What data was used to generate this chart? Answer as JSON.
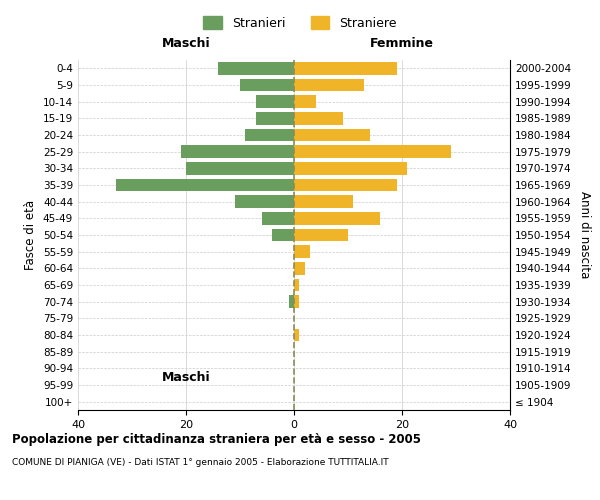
{
  "age_groups": [
    "100+",
    "95-99",
    "90-94",
    "85-89",
    "80-84",
    "75-79",
    "70-74",
    "65-69",
    "60-64",
    "55-59",
    "50-54",
    "45-49",
    "40-44",
    "35-39",
    "30-34",
    "25-29",
    "20-24",
    "15-19",
    "10-14",
    "5-9",
    "0-4"
  ],
  "birth_years": [
    "≤ 1904",
    "1905-1909",
    "1910-1914",
    "1915-1919",
    "1920-1924",
    "1925-1929",
    "1930-1934",
    "1935-1939",
    "1940-1944",
    "1945-1949",
    "1950-1954",
    "1955-1959",
    "1960-1964",
    "1965-1969",
    "1970-1974",
    "1975-1979",
    "1980-1984",
    "1985-1989",
    "1990-1994",
    "1995-1999",
    "2000-2004"
  ],
  "maschi": [
    0,
    0,
    0,
    0,
    0,
    0,
    1,
    0,
    0,
    0,
    4,
    6,
    11,
    33,
    20,
    21,
    9,
    7,
    7,
    10,
    14
  ],
  "femmine": [
    0,
    0,
    0,
    0,
    1,
    0,
    1,
    1,
    2,
    3,
    10,
    16,
    11,
    19,
    21,
    29,
    14,
    9,
    4,
    13,
    19
  ],
  "maschi_color": "#6a9e5e",
  "femmine_color": "#f0b429",
  "bg_color": "#ffffff",
  "grid_color": "#cccccc",
  "title": "Popolazione per cittadinanza straniera per età e sesso - 2005",
  "subtitle": "COMUNE DI PIANIGA (VE) - Dati ISTAT 1° gennaio 2005 - Elaborazione TUTTITALIA.IT",
  "xlabel_left": "Maschi",
  "xlabel_right": "Femmine",
  "ylabel_left": "Fasce di età",
  "ylabel_right": "Anni di nascita",
  "legend_stranieri": "Stranieri",
  "legend_straniere": "Straniere",
  "xlim": 40,
  "dashed_line_color": "#8b8b5a"
}
